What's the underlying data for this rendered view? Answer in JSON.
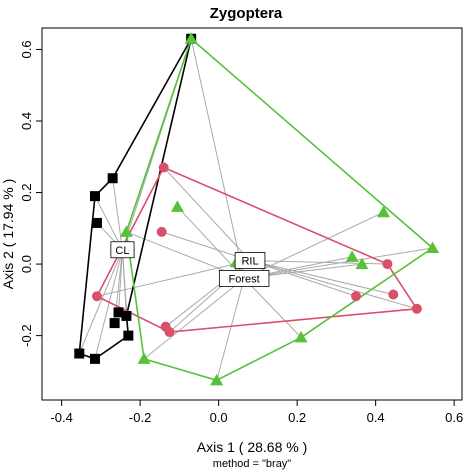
{
  "chart_data": {
    "type": "scatter",
    "title": "Zygoptera",
    "xlabel": "Axis 1 ( 28.68 % )",
    "ylabel": "Axis 2 ( 17.94 % )",
    "caption": "method = \"bray\"",
    "xlim": [
      -0.45,
      0.62
    ],
    "ylim": [
      -0.38,
      0.66
    ],
    "x_ticks": [
      -0.4,
      -0.2,
      0.0,
      0.2,
      0.4,
      0.6
    ],
    "x_tick_labels": [
      "-0.4",
      "-0.2",
      "0.0",
      "0.2",
      "0.4",
      "0.6"
    ],
    "y_ticks": [
      -0.2,
      0.0,
      0.2,
      0.4,
      0.6
    ],
    "y_tick_labels": [
      "-0.2",
      "0.0",
      "0.2",
      "0.4",
      "0.6"
    ],
    "spider_color": "#aaaaaa",
    "series": [
      {
        "name": "CL",
        "marker": "square",
        "color": "#000000",
        "centroid": [
          -0.245,
          0.04
        ],
        "hull": [
          [
            -0.07,
            0.63
          ],
          [
            -0.27,
            0.24
          ],
          [
            -0.315,
            0.19
          ],
          [
            -0.355,
            -0.25
          ],
          [
            -0.315,
            -0.265
          ],
          [
            -0.23,
            -0.2
          ],
          [
            -0.235,
            -0.145
          ]
        ],
        "points": [
          [
            -0.27,
            0.24
          ],
          [
            -0.315,
            0.19
          ],
          [
            -0.31,
            0.115
          ],
          [
            -0.355,
            -0.25
          ],
          [
            -0.315,
            -0.265
          ],
          [
            -0.23,
            -0.2
          ],
          [
            -0.265,
            -0.165
          ],
          [
            -0.235,
            -0.145
          ],
          [
            -0.255,
            -0.135
          ],
          [
            -0.07,
            0.63
          ]
        ]
      },
      {
        "name": "RIL",
        "marker": "circle",
        "color": "#d9506b",
        "centroid": [
          0.08,
          0.01
        ],
        "hull": [
          [
            -0.14,
            0.27
          ],
          [
            0.43,
            0.0
          ],
          [
            0.505,
            -0.125
          ],
          [
            -0.125,
            -0.19
          ],
          [
            -0.31,
            -0.09
          ]
        ],
        "points": [
          [
            -0.14,
            0.27
          ],
          [
            -0.145,
            0.09
          ],
          [
            -0.31,
            -0.09
          ],
          [
            -0.125,
            -0.19
          ],
          [
            -0.135,
            -0.175
          ],
          [
            0.43,
            0.0
          ],
          [
            0.35,
            -0.09
          ],
          [
            0.445,
            -0.085
          ],
          [
            0.505,
            -0.125
          ]
        ]
      },
      {
        "name": "Forest",
        "marker": "triangle",
        "color": "#55c23a",
        "centroid": [
          0.065,
          -0.04
        ],
        "hull": [
          [
            -0.07,
            0.63
          ],
          [
            0.545,
            0.045
          ],
          [
            0.21,
            -0.205
          ],
          [
            -0.005,
            -0.325
          ],
          [
            -0.19,
            -0.265
          ],
          [
            -0.235,
            0.09
          ]
        ],
        "points": [
          [
            -0.07,
            0.63
          ],
          [
            -0.105,
            0.16
          ],
          [
            -0.235,
            0.09
          ],
          [
            0.045,
            0.005
          ],
          [
            0.34,
            0.02
          ],
          [
            0.365,
            0.0
          ],
          [
            0.545,
            0.045
          ],
          [
            0.42,
            0.145
          ],
          [
            0.21,
            -0.205
          ],
          [
            -0.19,
            -0.265
          ],
          [
            -0.005,
            -0.325
          ]
        ]
      }
    ]
  }
}
